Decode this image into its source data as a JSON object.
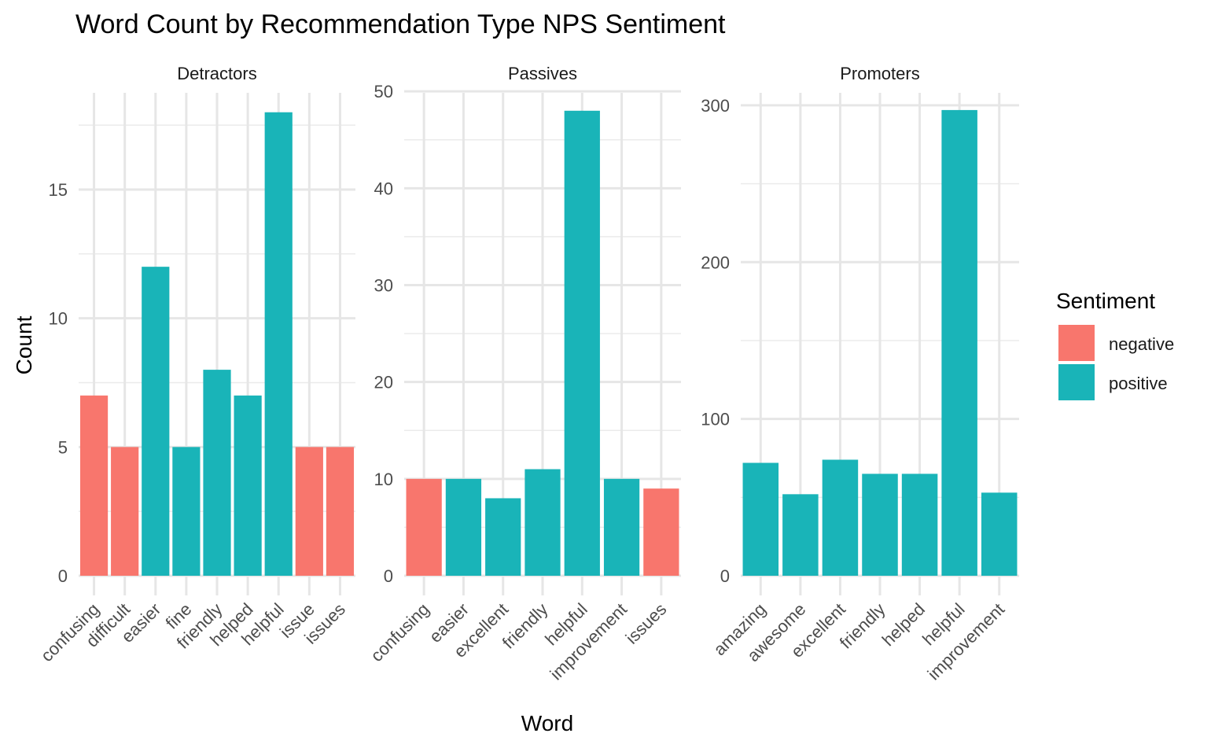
{
  "chart_data": {
    "type": "bar",
    "title": "Word Count by Recommendation Type NPS Sentiment",
    "xlabel": "Word",
    "ylabel": "Count",
    "legend": {
      "title": "Sentiment",
      "position": "right",
      "entries": [
        {
          "label": "negative",
          "color": "#F8766D"
        },
        {
          "label": "positive",
          "color": "#19B4B8"
        }
      ]
    },
    "grid": true,
    "facets": [
      {
        "name": "Detractors",
        "ylim": [
          0,
          19
        ],
        "yticks": [
          0,
          5,
          10,
          15
        ],
        "categories": [
          "confusing",
          "difficult",
          "easier",
          "fine",
          "friendly",
          "helped",
          "helpful",
          "issue",
          "issues"
        ],
        "values": [
          7,
          5,
          12,
          5,
          8,
          7,
          18,
          5,
          5
        ],
        "sentiment": [
          "negative",
          "negative",
          "positive",
          "positive",
          "positive",
          "positive",
          "positive",
          "negative",
          "negative"
        ]
      },
      {
        "name": "Passives",
        "ylim": [
          0,
          50.5
        ],
        "yticks": [
          0,
          10,
          20,
          30,
          40,
          50
        ],
        "categories": [
          "confusing",
          "easier",
          "excellent",
          "friendly",
          "helpful",
          "improvement",
          "issues"
        ],
        "values": [
          10,
          10,
          8,
          11,
          48,
          10,
          9
        ],
        "sentiment": [
          "negative",
          "positive",
          "positive",
          "positive",
          "positive",
          "positive",
          "negative"
        ]
      },
      {
        "name": "Promoters",
        "ylim": [
          0,
          312
        ],
        "yticks": [
          0,
          100,
          200,
          300
        ],
        "categories": [
          "amazing",
          "awesome",
          "excellent",
          "friendly",
          "helped",
          "helpful",
          "improvement"
        ],
        "values": [
          72,
          52,
          74,
          65,
          65,
          297,
          53
        ],
        "sentiment": [
          "positive",
          "positive",
          "positive",
          "positive",
          "positive",
          "positive",
          "positive"
        ]
      }
    ]
  }
}
